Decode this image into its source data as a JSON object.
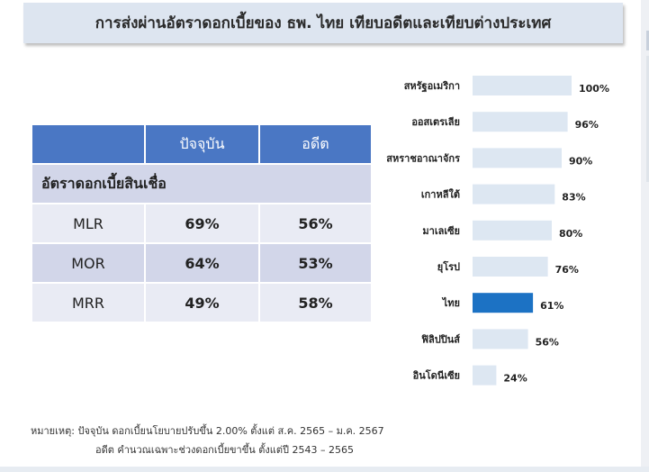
{
  "title": "การส่งผ่านอัตราดอกเบี้ยของ ธพ. ไทย เทียบอดีตและเทียบต่างประเทศ",
  "table": {
    "headers": [
      "",
      "ปัจจุบัน",
      "อดีต"
    ],
    "section_label": "อัตราดอกเบี้ยสินเชื่อ",
    "rows": [
      {
        "label": "MLR",
        "current": "69%",
        "past": "56%"
      },
      {
        "label": "MOR",
        "current": "64%",
        "past": "53%"
      },
      {
        "label": "MRR",
        "current": "49%",
        "past": "58%"
      }
    ]
  },
  "chart_data": {
    "type": "bar",
    "orientation": "horizontal",
    "categories": [
      "สหรัฐอเมริกา",
      "ออสเตรเลีย",
      "สหราชอาณาจักร",
      "เกาหลีใต้",
      "มาเลเซีย",
      "ยุโรป",
      "ไทย",
      "ฟิลิปปินส์",
      "อินโดนีเซีย"
    ],
    "values": [
      100,
      96,
      90,
      83,
      80,
      76,
      61,
      56,
      24
    ],
    "value_labels": [
      "100%",
      "96%",
      "90%",
      "83%",
      "80%",
      "76%",
      "61%",
      "56%",
      "24%"
    ],
    "highlight": "ไทย",
    "colors": {
      "default": "#dde7f2",
      "highlight": "#1c72c4"
    },
    "xlim": [
      0,
      100
    ],
    "title": "",
    "xlabel": "",
    "ylabel": ""
  },
  "notes": {
    "line1": "หมายเหตุ: ปัจจุบัน ดอกเบี้ยนโยบายปรับขึ้น 2.00% ตั้งแต่ ส.ค. 2565 – ม.ค. 2567",
    "line2": "อดีต คำนวณเฉพาะช่วงดอกเบี้ยขาขึ้น ตั้งแต่ปี 2543 – 2565"
  }
}
